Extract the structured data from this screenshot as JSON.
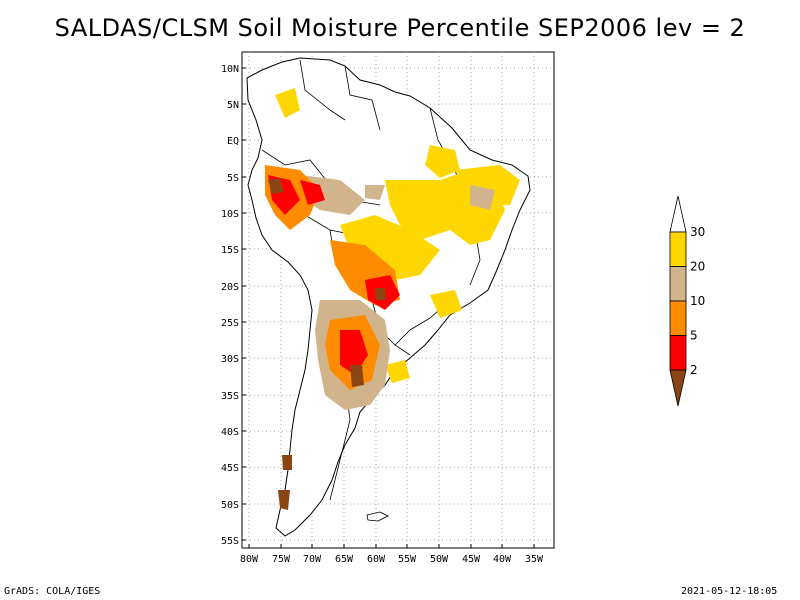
{
  "title": "SALDAS/CLSM Soil Moisture Percentile SEP2006 lev = 2",
  "footer": {
    "left": "GrADS: COLA/IGES",
    "right": "2021-05-12-18:05"
  },
  "axes": {
    "lat_labels": [
      "10N",
      "5N",
      "EQ",
      "5S",
      "10S",
      "15S",
      "20S",
      "25S",
      "30S",
      "35S",
      "40S",
      "45S",
      "50S",
      "55S"
    ],
    "lon_labels": [
      "80W",
      "75W",
      "70W",
      "65W",
      "60W",
      "55W",
      "50W",
      "45W",
      "40W",
      "35W"
    ],
    "lat_range": [
      -56,
      11
    ],
    "lon_range": [
      -81,
      -33
    ]
  },
  "colorbar": {
    "labels": [
      "2",
      "5",
      "10",
      "20",
      "30"
    ],
    "colors": [
      "#8b4513",
      "#ff0000",
      "#ff8c00",
      "#d2b48c",
      "#ffd700",
      "#ffffff"
    ]
  },
  "map_colors": {
    "land": "#ffffff",
    "coast": "#000000",
    "grid": "#aaaaaa"
  }
}
